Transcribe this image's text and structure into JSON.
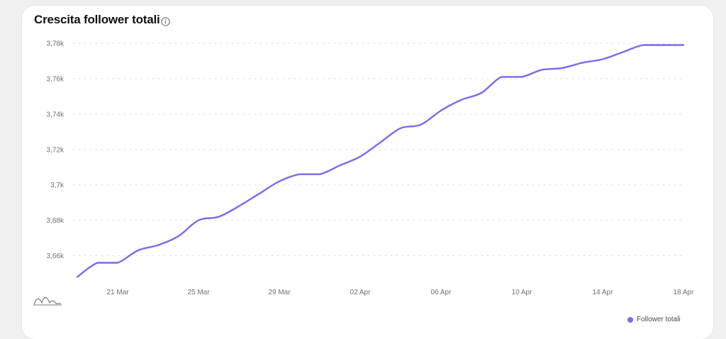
{
  "card": {
    "title": "Crescita follower totali",
    "info_icon": "info-icon",
    "chart_toggle_icon": "line-chart-icon"
  },
  "chart_data": {
    "type": "line",
    "xlabel": "",
    "ylabel": "",
    "x": [
      "19 Mar",
      "20 Mar",
      "21 Mar",
      "22 Mar",
      "23 Mar",
      "24 Mar",
      "25 Mar",
      "26 Mar",
      "27 Mar",
      "28 Mar",
      "29 Mar",
      "30 Mar",
      "31 Mar",
      "01 Apr",
      "02 Apr",
      "03 Apr",
      "04 Apr",
      "05 Apr",
      "06 Apr",
      "07 Apr",
      "08 Apr",
      "09 Apr",
      "10 Apr",
      "11 Apr",
      "12 Apr",
      "13 Apr",
      "14 Apr",
      "15 Apr",
      "16 Apr",
      "17 Apr",
      "18 Apr"
    ],
    "x_ticks": [
      "21 Mar",
      "25 Mar",
      "29 Mar",
      "02 Apr",
      "06 Apr",
      "10 Apr",
      "14 Apr",
      "18 Apr"
    ],
    "ylim": [
      3.645,
      3.782
    ],
    "y_ticks": [
      3.66,
      3.68,
      3.7,
      3.72,
      3.74,
      3.76,
      3.78
    ],
    "y_tick_labels": [
      "3,66k",
      "3,68k",
      "3,7k",
      "3,72k",
      "3,74k",
      "3,76k",
      "3,78k"
    ],
    "grid": true,
    "legend_position": "bottom-right",
    "color": "#7b68ee",
    "series": [
      {
        "name": "Follower totali",
        "values": [
          3.648,
          3.656,
          3.656,
          3.663,
          3.666,
          3.671,
          3.68,
          3.682,
          3.688,
          3.695,
          3.702,
          3.706,
          3.706,
          3.711,
          3.716,
          3.724,
          3.732,
          3.734,
          3.742,
          3.748,
          3.752,
          3.761,
          3.761,
          3.765,
          3.766,
          3.769,
          3.771,
          3.775,
          3.779,
          3.779,
          3.779
        ]
      }
    ]
  }
}
